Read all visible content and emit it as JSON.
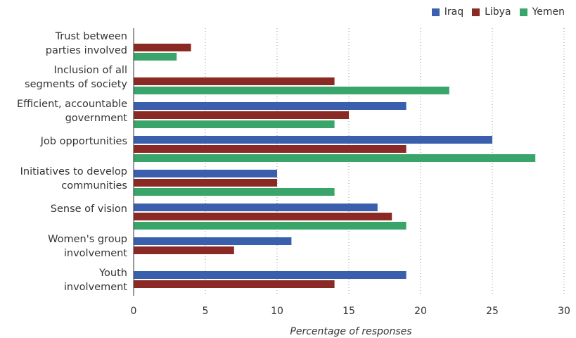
{
  "chart_data": {
    "type": "bar",
    "orientation": "horizontal",
    "categories": [
      [
        "Trust between",
        "parties involved"
      ],
      [
        "Inclusion of all",
        "segments of society"
      ],
      [
        "Efficient, accountable",
        "government"
      ],
      [
        "Job opportunities"
      ],
      [
        "Initiatives to develop",
        "communities"
      ],
      [
        "Sense of vision"
      ],
      [
        "Women's group",
        "involvement"
      ],
      [
        "Youth",
        "involvement"
      ]
    ],
    "series": [
      {
        "name": "Iraq",
        "color": "#3a5fad",
        "values": [
          null,
          null,
          19,
          25,
          10,
          17,
          11,
          19
        ]
      },
      {
        "name": "Libya",
        "color": "#8b2a25",
        "values": [
          4,
          14,
          15,
          19,
          10,
          18,
          7,
          14
        ]
      },
      {
        "name": "Yemen",
        "color": "#3aa56a",
        "values": [
          3,
          22,
          14,
          28,
          14,
          19,
          null,
          null
        ]
      }
    ],
    "xlim": [
      0,
      30
    ],
    "xticks": [
      0,
      5,
      10,
      15,
      20,
      25,
      30
    ],
    "xlabel": "Percentage of responses",
    "ylabel": "",
    "title": "",
    "grid": "vertical dotted",
    "legend_position": "top-right"
  }
}
